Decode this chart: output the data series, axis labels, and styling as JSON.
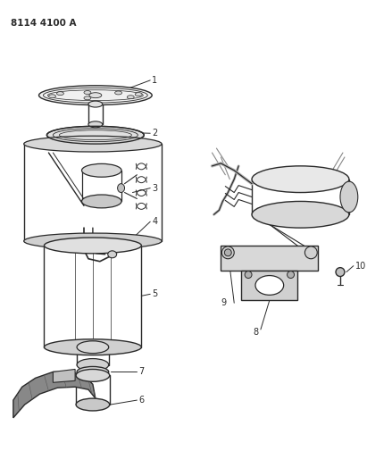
{
  "title": "8114 4100 A",
  "background_color": "#ffffff",
  "line_color": "#2a2a2a",
  "fig_width": 4.11,
  "fig_height": 5.33,
  "dpi": 100
}
